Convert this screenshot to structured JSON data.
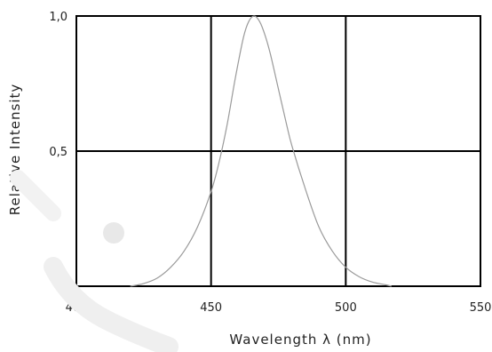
{
  "chart_data": {
    "type": "line",
    "title": "",
    "xlabel": "Wavelength λ  (nm)",
    "ylabel": "Relative  Intensity",
    "xlim": [
      400,
      550
    ],
    "ylim": [
      0,
      1.0
    ],
    "x_ticks": [
      400,
      450,
      500,
      550
    ],
    "x_tick_labels": [
      "400",
      "450",
      "500",
      "550"
    ],
    "y_ticks": [
      0.5,
      1.0
    ],
    "y_tick_labels": [
      "0,5",
      "1,0"
    ],
    "grid": true,
    "series": [
      {
        "color": "#9a9a9a",
        "x": [
          420,
          425,
          430,
          435,
          440,
          445,
          450,
          453,
          456,
          459,
          462,
          464,
          466,
          468,
          470,
          472,
          475,
          478,
          480,
          485,
          490,
          495,
          500,
          505,
          510,
          515,
          517
        ],
        "y": [
          0.0,
          0.01,
          0.03,
          0.07,
          0.13,
          0.22,
          0.35,
          0.46,
          0.6,
          0.77,
          0.92,
          0.98,
          1.0,
          0.98,
          0.93,
          0.86,
          0.73,
          0.6,
          0.52,
          0.36,
          0.22,
          0.13,
          0.07,
          0.035,
          0.015,
          0.005,
          0.0
        ]
      }
    ]
  }
}
